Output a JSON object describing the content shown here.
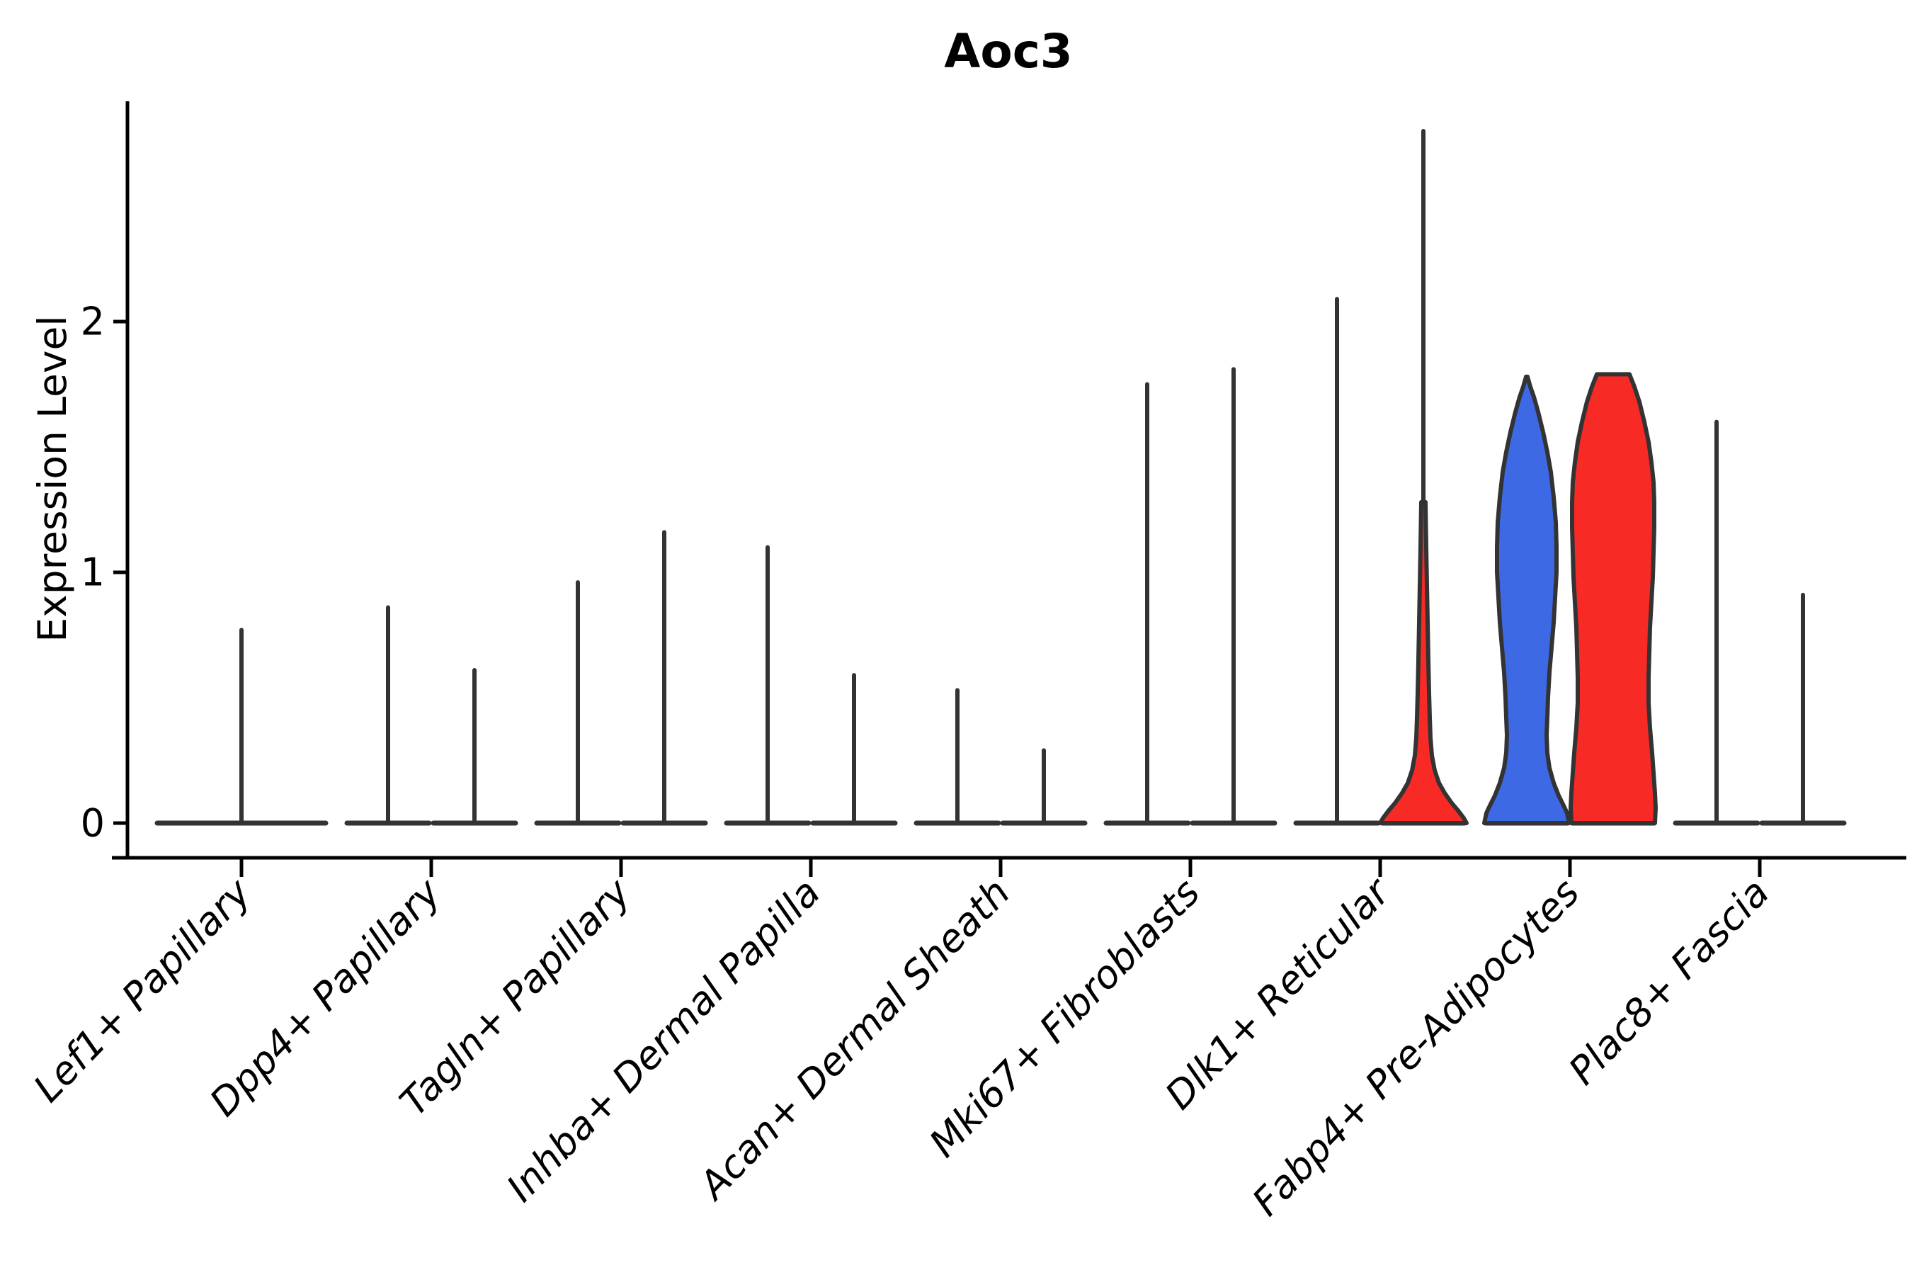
{
  "chart_data": {
    "type": "violin",
    "title": "Aoc3",
    "ylabel": "Expression Level",
    "xlabel": "",
    "yticks": [
      0,
      1,
      2
    ],
    "ylim": [
      -0.15,
      2.9
    ],
    "legend": "none",
    "grid": false,
    "colors": {
      "blue": "#3E69E5",
      "red": "#F82A26",
      "violin_outline": "#333333",
      "axis": "#000000"
    },
    "categories": [
      {
        "label": "Lef1+ Papillary",
        "violins": [
          {
            "kind": "spike",
            "span": "full",
            "side": "center",
            "fill": "none",
            "max": 0.77
          }
        ]
      },
      {
        "label": "Dpp4+ Papillary",
        "violins": [
          {
            "kind": "spike",
            "span": "half",
            "side": "left",
            "fill": "none",
            "max": 0.86
          },
          {
            "kind": "spike",
            "span": "half",
            "side": "right",
            "fill": "none",
            "max": 0.61
          }
        ]
      },
      {
        "label": "Tagln+ Papillary",
        "violins": [
          {
            "kind": "spike",
            "span": "half",
            "side": "left",
            "fill": "none",
            "max": 0.96
          },
          {
            "kind": "spike",
            "span": "half",
            "side": "right",
            "fill": "none",
            "max": 1.16
          }
        ]
      },
      {
        "label": "Inhba+ Dermal Papilla",
        "violins": [
          {
            "kind": "spike",
            "span": "half",
            "side": "left",
            "fill": "none",
            "max": 1.1
          },
          {
            "kind": "spike",
            "span": "half",
            "side": "right",
            "fill": "none",
            "max": 0.59
          }
        ]
      },
      {
        "label": "Acan+ Dermal Sheath",
        "violins": [
          {
            "kind": "spike",
            "span": "half",
            "side": "left",
            "fill": "none",
            "max": 0.53
          },
          {
            "kind": "spike",
            "span": "half",
            "side": "right",
            "fill": "none",
            "max": 0.29
          }
        ]
      },
      {
        "label": "Mki67+ Fibroblasts",
        "violins": [
          {
            "kind": "spike",
            "span": "half",
            "side": "left",
            "fill": "none",
            "max": 1.75
          },
          {
            "kind": "spike",
            "span": "half",
            "side": "right",
            "fill": "none",
            "max": 1.81
          }
        ]
      },
      {
        "label": "Dlk1+ Reticular",
        "violins": [
          {
            "kind": "spike",
            "span": "half",
            "side": "left",
            "fill": "none",
            "max": 2.09
          },
          {
            "kind": "shape",
            "span": "half",
            "side": "right",
            "fill": "red",
            "max": 2.76,
            "spike_to": 2.76,
            "profile": [
              [
                1.28,
                3
              ],
              [
                1.1,
                4
              ],
              [
                0.95,
                5
              ],
              [
                0.8,
                6
              ],
              [
                0.65,
                7
              ],
              [
                0.52,
                8
              ],
              [
                0.42,
                9
              ],
              [
                0.34,
                10
              ],
              [
                0.27,
                12
              ],
              [
                0.21,
                16
              ],
              [
                0.16,
                22
              ],
              [
                0.12,
                30
              ],
              [
                0.08,
                40
              ],
              [
                0.05,
                49
              ],
              [
                0.02,
                57
              ],
              [
                0.0,
                61
              ]
            ]
          }
        ]
      },
      {
        "label": "Fabp4+ Pre-Adipocytes",
        "violins": [
          {
            "kind": "shape",
            "span": "half",
            "side": "left",
            "fill": "blue",
            "max": 1.78,
            "profile": [
              [
                1.78,
                1
              ],
              [
                1.74,
                5
              ],
              [
                1.7,
                10
              ],
              [
                1.64,
                16
              ],
              [
                1.56,
                23
              ],
              [
                1.48,
                29
              ],
              [
                1.4,
                34
              ],
              [
                1.3,
                38
              ],
              [
                1.2,
                41
              ],
              [
                1.1,
                42
              ],
              [
                1.0,
                42
              ],
              [
                0.9,
                40
              ],
              [
                0.8,
                38
              ],
              [
                0.7,
                35
              ],
              [
                0.6,
                32
              ],
              [
                0.5,
                30
              ],
              [
                0.42,
                29
              ],
              [
                0.35,
                28
              ],
              [
                0.28,
                29
              ],
              [
                0.22,
                32
              ],
              [
                0.16,
                38
              ],
              [
                0.11,
                45
              ],
              [
                0.07,
                52
              ],
              [
                0.04,
                57
              ],
              [
                0.0,
                60
              ]
            ]
          },
          {
            "kind": "shape",
            "span": "half",
            "side": "right",
            "fill": "red",
            "max": 1.79,
            "flat_top": true,
            "profile": [
              [
                1.79,
                23
              ],
              [
                1.74,
                30
              ],
              [
                1.68,
                37
              ],
              [
                1.6,
                44
              ],
              [
                1.52,
                50
              ],
              [
                1.44,
                54
              ],
              [
                1.36,
                57
              ],
              [
                1.28,
                58
              ],
              [
                1.18,
                58
              ],
              [
                1.08,
                57
              ],
              [
                0.98,
                56
              ],
              [
                0.88,
                54
              ],
              [
                0.78,
                52
              ],
              [
                0.68,
                51
              ],
              [
                0.58,
                50
              ],
              [
                0.48,
                50
              ],
              [
                0.38,
                52
              ],
              [
                0.28,
                55
              ],
              [
                0.2,
                57
              ],
              [
                0.12,
                59
              ],
              [
                0.06,
                60
              ],
              [
                0.0,
                59
              ]
            ]
          }
        ]
      },
      {
        "label": "Plac8+ Fascia",
        "violins": [
          {
            "kind": "spike",
            "span": "half",
            "side": "left",
            "fill": "none",
            "max": 1.6
          },
          {
            "kind": "spike",
            "span": "half",
            "side": "right",
            "fill": "none",
            "max": 0.91
          }
        ]
      }
    ]
  }
}
